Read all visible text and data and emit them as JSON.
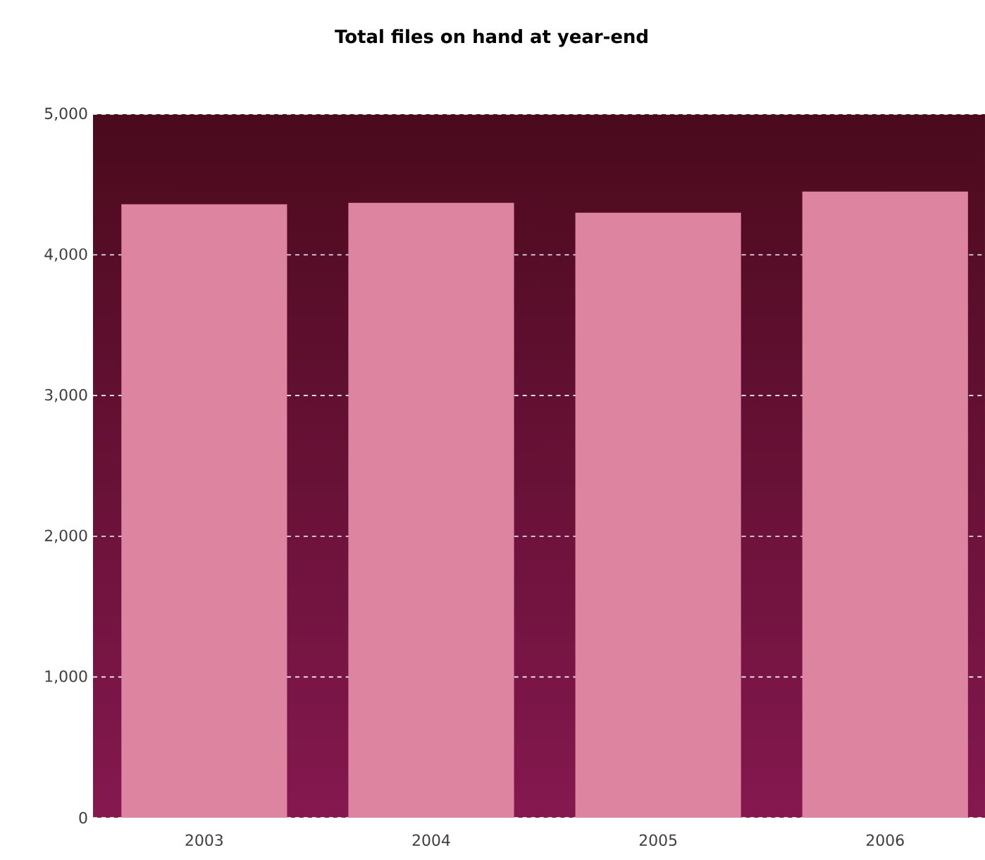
{
  "chart_data": {
    "type": "bar",
    "title": "Total files on hand at year-end",
    "categories": [
      "2003",
      "2004",
      "2005",
      "2006"
    ],
    "values": [
      4360,
      4370,
      4300,
      4450
    ],
    "color": "#dc84a0",
    "ylim": [
      0,
      5000
    ],
    "yticks": [
      0,
      {
        "value": 1000,
        "label": "1,000"
      },
      {
        "value": 2000,
        "label": "2,000"
      },
      {
        "value": 3000,
        "label": "3,000"
      },
      {
        "value": 4000,
        "label": "4,000"
      },
      {
        "value": 5000,
        "label": "5,000"
      }
    ],
    "grid": "y"
  }
}
